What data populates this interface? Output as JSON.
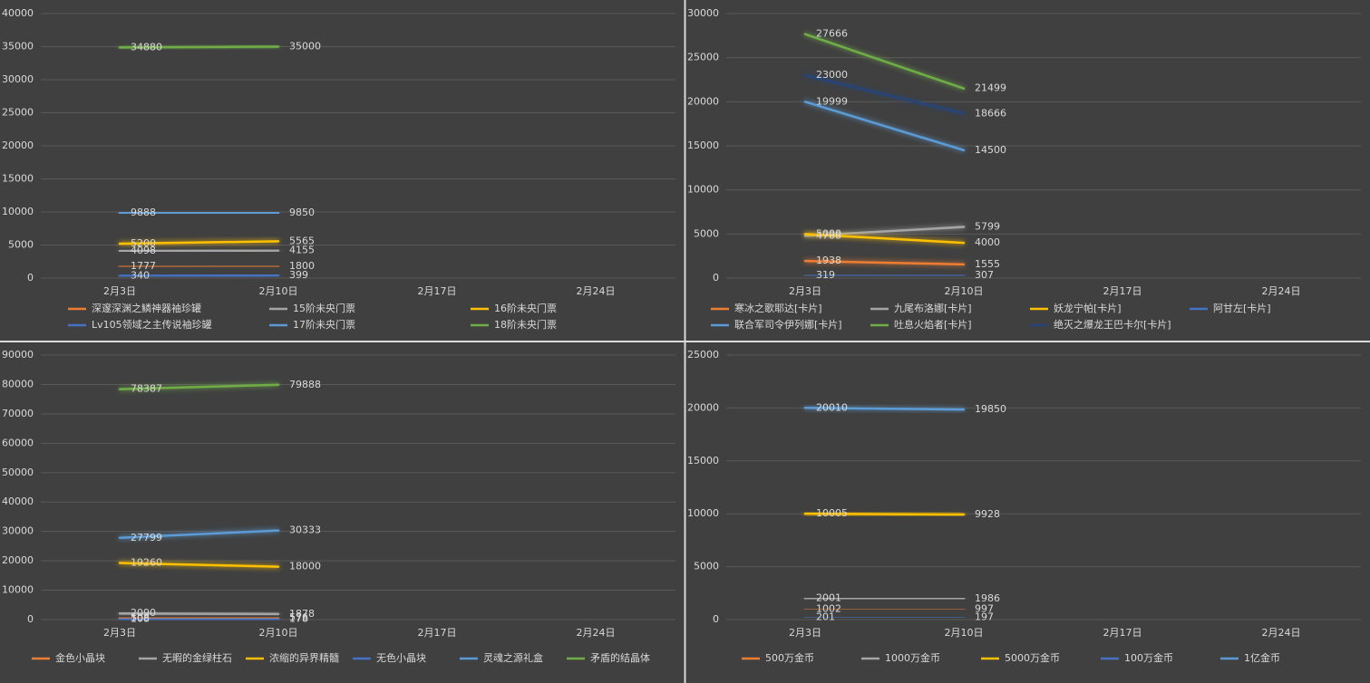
{
  "chart_data": [
    {
      "type": "line",
      "categories": [
        "2月3日",
        "2月10日",
        "2月17日",
        "2月24日"
      ],
      "ylim": [
        0,
        40000
      ],
      "yticks": [
        0,
        5000,
        10000,
        15000,
        20000,
        25000,
        30000,
        35000,
        40000
      ],
      "grid": true,
      "series": [
        {
          "name": "深邃深渊之鳞神器袖珍罐",
          "color": "#ed7d31",
          "values": [
            1777,
            1800,
            null,
            null
          ]
        },
        {
          "name": "15阶未央门票",
          "color": "#a5a5a5",
          "values": [
            4098,
            4155,
            null,
            null
          ]
        },
        {
          "name": "16阶未央门票",
          "color": "#ffc000",
          "values": [
            5200,
            5565,
            null,
            null
          ]
        },
        {
          "name": "Lv105领域之主传说袖珍罐",
          "color": "#4472c4",
          "values": [
            340,
            399,
            null,
            null
          ]
        },
        {
          "name": "17阶未央门票",
          "color": "#5b9bd5",
          "values": [
            9888,
            9850,
            null,
            null
          ]
        },
        {
          "name": "18阶未央门票",
          "color": "#70ad47",
          "values": [
            34880,
            35000,
            null,
            null
          ]
        }
      ]
    },
    {
      "type": "line",
      "categories": [
        "2月3日",
        "2月10日",
        "2月17日",
        "2月24日"
      ],
      "ylim": [
        0,
        30000
      ],
      "yticks": [
        0,
        5000,
        10000,
        15000,
        20000,
        25000,
        30000
      ],
      "grid": true,
      "series": [
        {
          "name": "寒冰之歌耶达[卡片]",
          "color": "#ed7d31",
          "values": [
            1938,
            1555,
            null,
            null
          ]
        },
        {
          "name": "九尾布洛娜[卡片]",
          "color": "#a5a5a5",
          "values": [
            4788,
            5799,
            null,
            null
          ]
        },
        {
          "name": "妖龙宁帕[卡片]",
          "color": "#ffc000",
          "values": [
            5000,
            4000,
            null,
            null
          ]
        },
        {
          "name": "阿甘左[卡片]",
          "color": "#4472c4",
          "values": [
            319,
            307,
            null,
            null
          ]
        },
        {
          "name": "联合军司令伊列娜[卡片]",
          "color": "#5b9bd5",
          "values": [
            19999,
            14500,
            null,
            null
          ]
        },
        {
          "name": "吐息火焰者[卡片]",
          "color": "#70ad47",
          "values": [
            27666,
            21499,
            null,
            null
          ]
        },
        {
          "name": "绝灭之爆龙王巴卡尔[卡片]",
          "color": "#264478",
          "values": [
            23000,
            18666,
            null,
            null
          ]
        }
      ]
    },
    {
      "type": "line",
      "categories": [
        "2月3日",
        "2月10日",
        "2月17日",
        "2月24日"
      ],
      "ylim": [
        0,
        90000
      ],
      "yticks": [
        0,
        10000,
        20000,
        30000,
        40000,
        50000,
        60000,
        70000,
        80000,
        90000
      ],
      "grid": true,
      "series": [
        {
          "name": "金色小晶块",
          "color": "#ed7d31",
          "values": [
            508,
            576,
            null,
            null
          ]
        },
        {
          "name": "无暇的金绿柱石",
          "color": "#a5a5a5",
          "values": [
            2090,
            1878,
            null,
            null
          ]
        },
        {
          "name": "浓缩的异界精髓",
          "color": "#ffc000",
          "values": [
            19260,
            18000,
            null,
            null
          ]
        },
        {
          "name": "无色小晶块",
          "color": "#4472c4",
          "values": [
            108,
            178,
            null,
            null
          ]
        },
        {
          "name": "灵魂之源礼盒",
          "color": "#5b9bd5",
          "values": [
            27799,
            30333,
            null,
            null
          ]
        },
        {
          "name": "矛盾的结晶体",
          "color": "#70ad47",
          "values": [
            78387,
            79888,
            null,
            null
          ]
        }
      ]
    },
    {
      "type": "line",
      "categories": [
        "2月3日",
        "2月10日",
        "2月17日",
        "2月24日"
      ],
      "ylim": [
        0,
        25000
      ],
      "yticks": [
        0,
        5000,
        10000,
        15000,
        20000,
        25000
      ],
      "grid": true,
      "series": [
        {
          "name": "500万金币",
          "color": "#ed7d31",
          "values": [
            1002,
            997,
            null,
            null
          ]
        },
        {
          "name": "1000万金币",
          "color": "#a5a5a5",
          "values": [
            2001,
            1986,
            null,
            null
          ]
        },
        {
          "name": "5000万金币",
          "color": "#ffc000",
          "values": [
            10005,
            9928,
            null,
            null
          ]
        },
        {
          "name": "100万金币",
          "color": "#4472c4",
          "values": [
            201,
            197,
            null,
            null
          ]
        },
        {
          "name": "1亿金币",
          "color": "#5b9bd5",
          "values": [
            20010,
            19850,
            null,
            null
          ]
        }
      ]
    }
  ]
}
